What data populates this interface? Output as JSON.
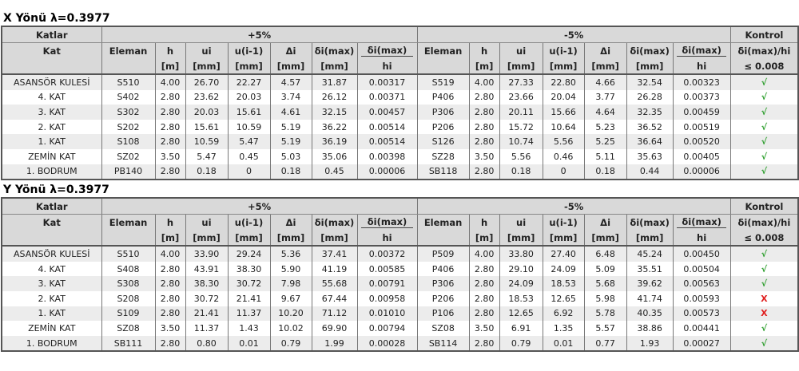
{
  "colors": {
    "ok": "#2a9d2a",
    "fail": "#e02020",
    "header_bg": "#d9d9d9"
  },
  "headers": {
    "katlar": "Katlar",
    "plus": "+5%",
    "minus": "-5%",
    "kontrol": "Kontrol",
    "kat": "Kat",
    "eleman": "Eleman",
    "h": "h",
    "ui": "ui",
    "ui1": "u(i-1)",
    "di": "Δi",
    "dmax": "δi(max)",
    "ratio_top": "ẟi(max)",
    "ratio_bottom": "hi",
    "kontrol_top": "ẟi(max)/hi",
    "kontrol_bottom": "≤ 0.008",
    "u_m": "[m]",
    "u_mm": "[mm]"
  },
  "icons": {
    "ok": "check-icon",
    "fail": "cross-icon",
    "ok_glyph": "√",
    "fail_glyph": "X"
  },
  "tables": [
    {
      "title": "X Yönü λ=0.3977",
      "rows": [
        {
          "kat": "ASANSÖR KULESİ",
          "p": [
            "S510",
            "4.00",
            "26.70",
            "22.27",
            "4.57",
            "31.87",
            "0.00317"
          ],
          "m": [
            "S519",
            "4.00",
            "27.33",
            "22.80",
            "4.66",
            "32.54",
            "0.00323"
          ],
          "ok": true
        },
        {
          "kat": "4. KAT",
          "p": [
            "S402",
            "2.80",
            "23.62",
            "20.03",
            "3.74",
            "26.12",
            "0.00371"
          ],
          "m": [
            "P406",
            "2.80",
            "23.66",
            "20.04",
            "3.77",
            "26.28",
            "0.00373"
          ],
          "ok": true
        },
        {
          "kat": "3. KAT",
          "p": [
            "S302",
            "2.80",
            "20.03",
            "15.61",
            "4.61",
            "32.15",
            "0.00457"
          ],
          "m": [
            "P306",
            "2.80",
            "20.11",
            "15.66",
            "4.64",
            "32.35",
            "0.00459"
          ],
          "ok": true
        },
        {
          "kat": "2. KAT",
          "p": [
            "S202",
            "2.80",
            "15.61",
            "10.59",
            "5.19",
            "36.22",
            "0.00514"
          ],
          "m": [
            "P206",
            "2.80",
            "15.72",
            "10.64",
            "5.23",
            "36.52",
            "0.00519"
          ],
          "ok": true
        },
        {
          "kat": "1. KAT",
          "p": [
            "S108",
            "2.80",
            "10.59",
            "5.47",
            "5.19",
            "36.19",
            "0.00514"
          ],
          "m": [
            "S126",
            "2.80",
            "10.74",
            "5.56",
            "5.25",
            "36.64",
            "0.00520"
          ],
          "ok": true
        },
        {
          "kat": "ZEMİN KAT",
          "p": [
            "SZ02",
            "3.50",
            "5.47",
            "0.45",
            "5.03",
            "35.06",
            "0.00398"
          ],
          "m": [
            "SZ28",
            "3.50",
            "5.56",
            "0.46",
            "5.11",
            "35.63",
            "0.00405"
          ],
          "ok": true
        },
        {
          "kat": "1. BODRUM",
          "p": [
            "PB140",
            "2.80",
            "0.18",
            "0",
            "0.18",
            "0.45",
            "0.00006"
          ],
          "m": [
            "SB118",
            "2.80",
            "0.18",
            "0",
            "0.18",
            "0.44",
            "0.00006"
          ],
          "ok": true
        }
      ]
    },
    {
      "title": "Y Yönü λ=0.3977",
      "rows": [
        {
          "kat": "ASANSÖR KULESİ",
          "p": [
            "S510",
            "4.00",
            "33.90",
            "29.24",
            "5.36",
            "37.41",
            "0.00372"
          ],
          "m": [
            "P509",
            "4.00",
            "33.80",
            "27.40",
            "6.48",
            "45.24",
            "0.00450"
          ],
          "ok": true
        },
        {
          "kat": "4. KAT",
          "p": [
            "S408",
            "2.80",
            "43.91",
            "38.30",
            "5.90",
            "41.19",
            "0.00585"
          ],
          "m": [
            "P406",
            "2.80",
            "29.10",
            "24.09",
            "5.09",
            "35.51",
            "0.00504"
          ],
          "ok": true
        },
        {
          "kat": "3. KAT",
          "p": [
            "S308",
            "2.80",
            "38.30",
            "30.72",
            "7.98",
            "55.68",
            "0.00791"
          ],
          "m": [
            "P306",
            "2.80",
            "24.09",
            "18.53",
            "5.68",
            "39.62",
            "0.00563"
          ],
          "ok": true
        },
        {
          "kat": "2. KAT",
          "p": [
            "S208",
            "2.80",
            "30.72",
            "21.41",
            "9.67",
            "67.44",
            "0.00958"
          ],
          "m": [
            "P206",
            "2.80",
            "18.53",
            "12.65",
            "5.98",
            "41.74",
            "0.00593"
          ],
          "ok": false
        },
        {
          "kat": "1. KAT",
          "p": [
            "S109",
            "2.80",
            "21.41",
            "11.37",
            "10.20",
            "71.12",
            "0.01010"
          ],
          "m": [
            "P106",
            "2.80",
            "12.65",
            "6.92",
            "5.78",
            "40.35",
            "0.00573"
          ],
          "ok": false
        },
        {
          "kat": "ZEMİN KAT",
          "p": [
            "SZ08",
            "3.50",
            "11.37",
            "1.43",
            "10.02",
            "69.90",
            "0.00794"
          ],
          "m": [
            "SZ08",
            "3.50",
            "6.91",
            "1.35",
            "5.57",
            "38.86",
            "0.00441"
          ],
          "ok": true
        },
        {
          "kat": "1. BODRUM",
          "p": [
            "SB111",
            "2.80",
            "0.80",
            "0.01",
            "0.79",
            "1.99",
            "0.00028"
          ],
          "m": [
            "SB114",
            "2.80",
            "0.79",
            "0.01",
            "0.77",
            "1.93",
            "0.00027"
          ],
          "ok": true
        }
      ]
    }
  ]
}
